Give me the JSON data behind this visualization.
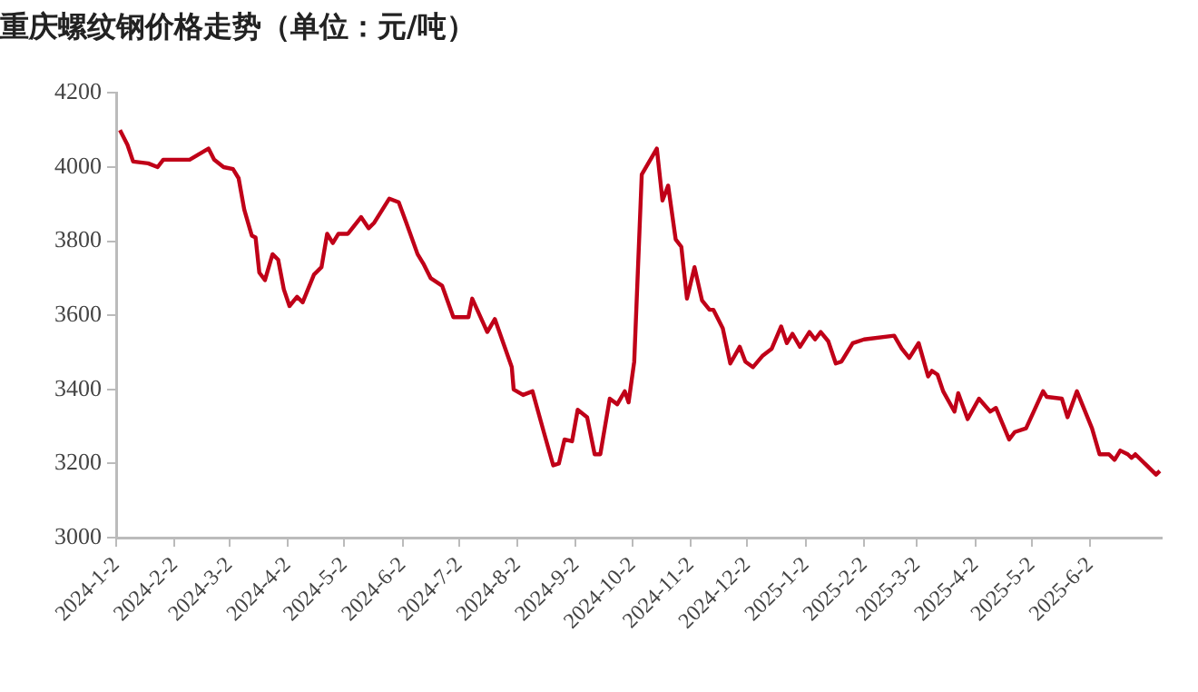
{
  "chart_data": {
    "type": "line",
    "title": "重庆螺纹钢价格走势（单位：元/吨）",
    "x": [
      "2024-01-04",
      "2024-01-08",
      "2024-01-11",
      "2024-01-19",
      "2024-01-24",
      "2024-01-27",
      "2024-02-10",
      "2024-02-20",
      "2024-02-23",
      "2024-02-28",
      "2024-03-04",
      "2024-03-07",
      "2024-03-10",
      "2024-03-14",
      "2024-03-16",
      "2024-03-18",
      "2024-03-21",
      "2024-03-25",
      "2024-03-28",
      "2024-03-31",
      "2024-04-03",
      "2024-04-07",
      "2024-04-10",
      "2024-04-16",
      "2024-04-20",
      "2024-04-23",
      "2024-04-26",
      "2024-04-29",
      "2024-05-04",
      "2024-05-11",
      "2024-05-15",
      "2024-05-18",
      "2024-05-26",
      "2024-05-31",
      "2024-06-04",
      "2024-06-10",
      "2024-06-13",
      "2024-06-17",
      "2024-06-23",
      "2024-06-29",
      "2024-07-07",
      "2024-07-09",
      "2024-07-17",
      "2024-07-21",
      "2024-07-30",
      "2024-07-31",
      "2024-08-05",
      "2024-08-10",
      "2024-08-16",
      "2024-08-21",
      "2024-08-24",
      "2024-08-27",
      "2024-08-31",
      "2024-09-03",
      "2024-09-08",
      "2024-09-12",
      "2024-09-15",
      "2024-09-20",
      "2024-09-24",
      "2024-09-28",
      "2024-09-30",
      "2024-10-03",
      "2024-10-07",
      "2024-10-15",
      "2024-10-18",
      "2024-10-21",
      "2024-10-25",
      "2024-10-28",
      "2024-10-31",
      "2024-11-04",
      "2024-11-08",
      "2024-11-12",
      "2024-11-14",
      "2024-11-19",
      "2024-11-23",
      "2024-11-28",
      "2024-12-01",
      "2024-12-05",
      "2024-12-10",
      "2024-12-15",
      "2024-12-20",
      "2024-12-23",
      "2024-12-26",
      "2024-12-30",
      "2025-01-04",
      "2025-01-07",
      "2025-01-10",
      "2025-01-14",
      "2025-01-18",
      "2025-01-21",
      "2025-01-27",
      "2025-02-02",
      "2025-02-18",
      "2025-02-22",
      "2025-02-26",
      "2025-03-03",
      "2025-03-08",
      "2025-03-10",
      "2025-03-13",
      "2025-03-16",
      "2025-03-22",
      "2025-03-24",
      "2025-03-29",
      "2025-04-04",
      "2025-04-10",
      "2025-04-13",
      "2025-04-20",
      "2025-04-23",
      "2025-04-29",
      "2025-05-08",
      "2025-05-10",
      "2025-05-18",
      "2025-05-21",
      "2025-05-26",
      "2025-06-03",
      "2025-06-07",
      "2025-06-12",
      "2025-06-15",
      "2025-06-18",
      "2025-06-22",
      "2025-06-24",
      "2025-06-26",
      "2025-07-02",
      "2025-07-07",
      "2025-07-09"
    ],
    "series": [
      {
        "color": "#c00018",
        "values": [
          4100,
          4060,
          4015,
          4010,
          4000,
          4020,
          4020,
          4050,
          4020,
          4000,
          3995,
          3970,
          3885,
          3815,
          3810,
          3715,
          3695,
          3765,
          3750,
          3670,
          3625,
          3650,
          3635,
          3710,
          3730,
          3820,
          3795,
          3820,
          3820,
          3865,
          3835,
          3850,
          3915,
          3905,
          3850,
          3765,
          3740,
          3700,
          3680,
          3595,
          3595,
          3645,
          3555,
          3590,
          3460,
          3400,
          3385,
          3395,
          3285,
          3195,
          3200,
          3265,
          3260,
          3345,
          3325,
          3225,
          3225,
          3375,
          3360,
          3395,
          3365,
          3475,
          3980,
          4050,
          3910,
          3950,
          3805,
          3785,
          3645,
          3730,
          3640,
          3615,
          3615,
          3565,
          3470,
          3515,
          3475,
          3460,
          3490,
          3510,
          3570,
          3525,
          3550,
          3515,
          3555,
          3535,
          3555,
          3530,
          3470,
          3475,
          3525,
          3535,
          3545,
          3510,
          3485,
          3525,
          3435,
          3450,
          3440,
          3395,
          3340,
          3390,
          3320,
          3375,
          3340,
          3350,
          3265,
          3285,
          3295,
          3395,
          3380,
          3375,
          3325,
          3395,
          3295,
          3225,
          3225,
          3210,
          3235,
          3225,
          3215,
          3225,
          3195,
          3170,
          3180
        ]
      }
    ],
    "xlim": [
      "2024-01-02",
      "2025-07-10"
    ],
    "xticks": [
      {
        "value": "2024-01-02",
        "label": "2024-1-2"
      },
      {
        "value": "2024-02-02",
        "label": "2024-2-2"
      },
      {
        "value": "2024-03-02",
        "label": "2024-3-2"
      },
      {
        "value": "2024-04-02",
        "label": "2024-4-2"
      },
      {
        "value": "2024-05-02",
        "label": "2024-5-2"
      },
      {
        "value": "2024-06-02",
        "label": "2024-6-2"
      },
      {
        "value": "2024-07-02",
        "label": "2024-7-2"
      },
      {
        "value": "2024-08-02",
        "label": "2024-8-2"
      },
      {
        "value": "2024-09-02",
        "label": "2024-9-2"
      },
      {
        "value": "2024-10-02",
        "label": "2024-10-2"
      },
      {
        "value": "2024-11-02",
        "label": "2024-11-2"
      },
      {
        "value": "2024-12-02",
        "label": "2024-12-2"
      },
      {
        "value": "2025-01-02",
        "label": "2025-1-2"
      },
      {
        "value": "2025-02-02",
        "label": "2025-2-2"
      },
      {
        "value": "2025-03-02",
        "label": "2025-3-2"
      },
      {
        "value": "2025-04-02",
        "label": "2025-4-2"
      },
      {
        "value": "2025-05-02",
        "label": "2025-5-2"
      },
      {
        "value": "2025-06-02",
        "label": "2025-6-2"
      }
    ],
    "ylim": [
      3000,
      4200
    ],
    "yticks": [
      3000,
      3200,
      3400,
      3600,
      3800,
      4000,
      4200
    ],
    "grid": false,
    "legend": false,
    "marker": "none",
    "line_style": "solid"
  }
}
